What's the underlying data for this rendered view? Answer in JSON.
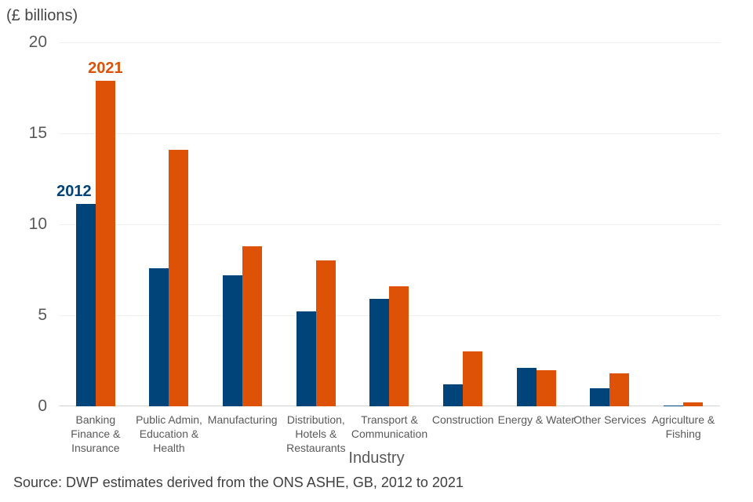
{
  "chart_data": {
    "type": "bar",
    "title": "",
    "units_label": "(£ billions)",
    "xlabel": "Industry",
    "ylabel": "(£ billions)",
    "ylim": [
      0,
      20
    ],
    "yticks": [
      0,
      5,
      10,
      15,
      20
    ],
    "grid": true,
    "legend_position": "series name annotations above first category group",
    "categories": [
      "Banking\nFinance &\nInsurance",
      "Public Admin,\nEducation &\nHealth",
      "Manufacturing",
      "Distribution,\nHotels &\nRestaurants",
      "Transport &\nCommunication",
      "Construction",
      "Energy & Water",
      "Other Services",
      "Agriculture &\nFishing"
    ],
    "series": [
      {
        "name": "2012",
        "color": "#004479",
        "values": [
          11.1,
          7.6,
          7.2,
          5.2,
          5.9,
          1.2,
          2.1,
          1.0,
          0.05
        ]
      },
      {
        "name": "2021",
        "color": "#DD5206",
        "values": [
          17.9,
          14.1,
          8.8,
          8.0,
          6.6,
          3.0,
          2.0,
          1.8,
          0.2
        ]
      }
    ]
  },
  "source_note": "Source: DWP estimates derived from the ONS ASHE, GB, 2012 to 2021"
}
